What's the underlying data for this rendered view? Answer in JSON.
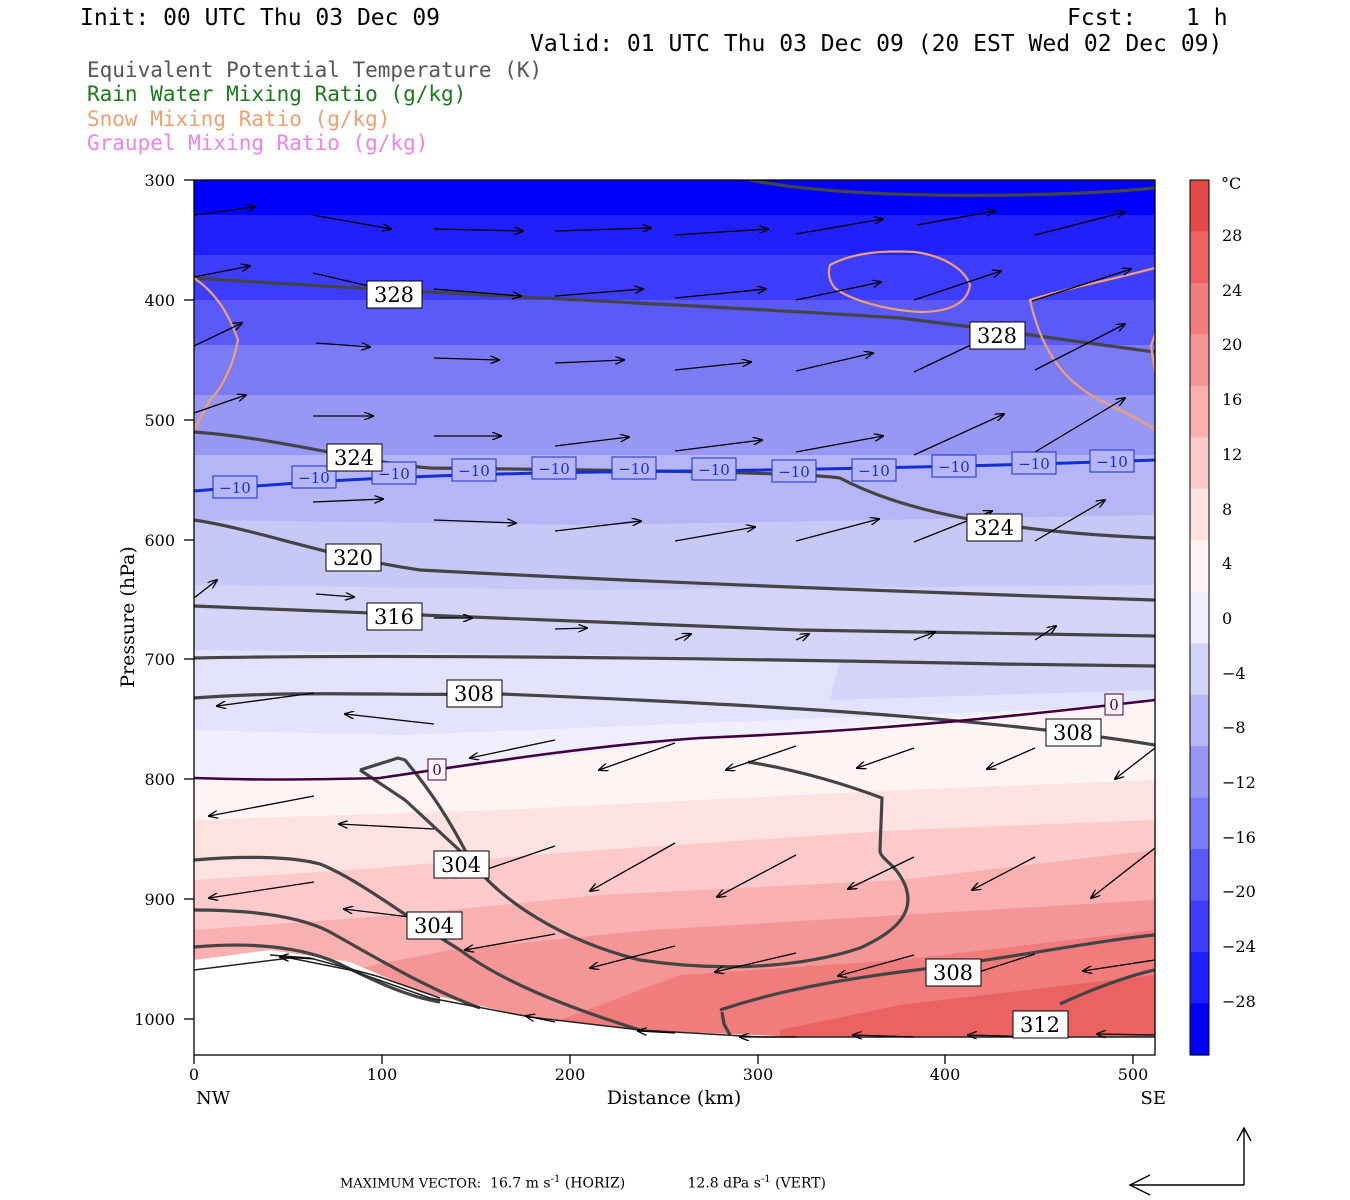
{
  "header": {
    "init": "Init: 00 UTC Thu 03 Dec 09",
    "fcst_label": "Fcst:",
    "fcst_value": "1 h",
    "valid": "Valid: 01 UTC Thu 03 Dec 09 (20 EST Wed 02 Dec 09)"
  },
  "variables": [
    {
      "label": "Equivalent Potential Temperature (K)",
      "color": "#555555"
    },
    {
      "label": "Rain Water Mixing Ratio (g/kg)",
      "color": "#1a7a1a"
    },
    {
      "label": "Snow Mixing Ratio (g/kg)",
      "color": "#f0a070"
    },
    {
      "label": "Graupel Mixing Ratio (g/kg)",
      "color": "#ee82ee"
    }
  ],
  "chart_data": {
    "type": "cross-section",
    "xlabel": "Distance (km)",
    "ylabel": "Pressure (hPa)",
    "xlim": [
      0,
      512
    ],
    "ylim": [
      1030,
      300
    ],
    "x_ticks": [
      "0",
      "100",
      "200",
      "300",
      "400",
      "500"
    ],
    "y_ticks": [
      "300",
      "400",
      "500",
      "600",
      "700",
      "800",
      "900",
      "1000"
    ],
    "x_end_labels": {
      "left": "NW",
      "right": "SE"
    },
    "temperature_shading": {
      "unit_label": "°C",
      "levels": [
        -32,
        -28,
        -24,
        -20,
        -16,
        -12,
        -8,
        -4,
        0,
        4,
        8,
        12,
        16,
        20,
        24,
        28,
        32
      ],
      "tick_labels": [
        "28",
        "24",
        "20",
        "16",
        "12",
        "8",
        "4",
        "0",
        "−4",
        "−8",
        "−12",
        "−16",
        "−20",
        "−24",
        "−28"
      ],
      "colors_cold": [
        "#0000ff",
        "#2020ff",
        "#3d3dff",
        "#5a5af8",
        "#7b7bf6",
        "#9898f4",
        "#b6b6f6",
        "#d4d4f8",
        "#eeeefc"
      ],
      "colors_warm": [
        "#fff4f4",
        "#fee2e2",
        "#fccaca",
        "#f9b0b0",
        "#f59696",
        "#f07c7c",
        "#ea6262",
        "#e44848"
      ]
    },
    "isotherm_labels": {
      "minus10": [
        "−10",
        "−10",
        "−10",
        "−10",
        "−10",
        "−10",
        "−10",
        "−10",
        "−10",
        "−10",
        "−10",
        "−10"
      ],
      "zero": [
        "0",
        "0"
      ]
    },
    "theta_e_labels": [
      "328",
      "328",
      "324",
      "324",
      "320",
      "316",
      "308",
      "308",
      "304",
      "304",
      "308",
      "312"
    ],
    "max_vector": {
      "label": "MAXIMUM VECTOR:",
      "horiz_value": "16.7",
      "horiz_unit": "m s",
      "horiz_exp": "-1",
      "horiz_tag": "(HORIZ)",
      "vert_value": "12.8",
      "vert_unit": "dPa s",
      "vert_exp": "-1",
      "vert_tag": "(VERT)"
    }
  }
}
